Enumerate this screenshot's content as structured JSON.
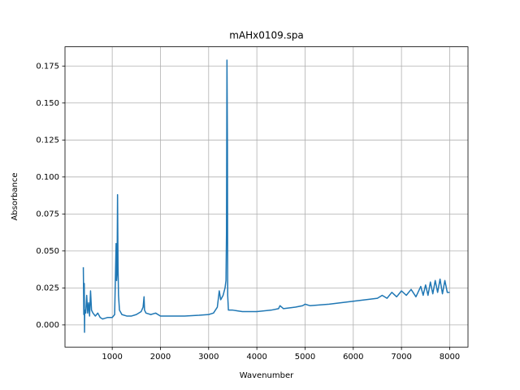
{
  "chart_data": {
    "type": "line",
    "title": "mAHx0109.spa",
    "x_label": "Wavenumber",
    "y_label": "Absorbance",
    "color": "#1f77b4",
    "grid": true,
    "xlim": [
      20,
      8380
    ],
    "ylim": [
      -0.015,
      0.188
    ],
    "xticks": [
      1000,
      2000,
      3000,
      4000,
      5000,
      6000,
      7000,
      8000
    ],
    "yticks": [
      {
        "value": 0,
        "label": "0.000"
      },
      0.025,
      {
        "value": 0.05,
        "label": "0.050"
      },
      0.075,
      {
        "value": 0.1,
        "label": "0.100"
      },
      0.125,
      {
        "value": 0.15,
        "label": "0.150"
      },
      0.175
    ],
    "x": [
      400,
      405,
      410,
      420,
      425,
      430,
      450,
      470,
      490,
      510,
      530,
      550,
      570,
      600,
      650,
      700,
      750,
      800,
      900,
      1000,
      1050,
      1080,
      1090,
      1100,
      1110,
      1120,
      1130,
      1150,
      1200,
      1300,
      1400,
      1500,
      1600,
      1640,
      1660,
      1670,
      1700,
      1800,
      1900,
      2000,
      2200,
      2500,
      2800,
      3000,
      3100,
      3180,
      3220,
      3250,
      3300,
      3340,
      3360,
      3370,
      3380,
      3390,
      3395,
      3410,
      3500,
      3600,
      3700,
      4000,
      4300,
      4450,
      4480,
      4550,
      4800,
      4950,
      5000,
      5100,
      5500,
      6000,
      6500,
      6600,
      6700,
      6800,
      6900,
      7000,
      7100,
      7200,
      7300,
      7400,
      7450,
      7500,
      7550,
      7600,
      7650,
      7700,
      7750,
      7800,
      7850,
      7900,
      7950,
      8000
    ],
    "values": [
      0.039,
      0.025,
      0.007,
      0.028,
      -0.005,
      0.01,
      0.008,
      0.02,
      0.008,
      0.015,
      0.006,
      0.023,
      0.01,
      0.008,
      0.006,
      0.008,
      0.005,
      0.004,
      0.005,
      0.005,
      0.007,
      0.055,
      0.03,
      0.035,
      0.088,
      0.04,
      0.02,
      0.01,
      0.007,
      0.006,
      0.006,
      0.007,
      0.009,
      0.012,
      0.019,
      0.01,
      0.008,
      0.007,
      0.008,
      0.006,
      0.006,
      0.006,
      0.0065,
      0.007,
      0.008,
      0.012,
      0.023,
      0.017,
      0.02,
      0.025,
      0.03,
      0.062,
      0.179,
      0.12,
      0.02,
      0.01,
      0.01,
      0.0095,
      0.009,
      0.009,
      0.01,
      0.011,
      0.013,
      0.011,
      0.012,
      0.013,
      0.014,
      0.013,
      0.014,
      0.016,
      0.018,
      0.02,
      0.018,
      0.022,
      0.019,
      0.023,
      0.02,
      0.024,
      0.019,
      0.026,
      0.02,
      0.027,
      0.02,
      0.029,
      0.021,
      0.03,
      0.022,
      0.031,
      0.021,
      0.03,
      0.022,
      0.022
    ]
  }
}
